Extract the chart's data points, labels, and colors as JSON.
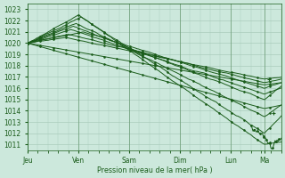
{
  "title": "",
  "xlabel": "Pression niveau de la mer( hPa )",
  "bg_color": "#cce8dc",
  "plot_bg_color": "#cce8dc",
  "grid_color": "#aaccbb",
  "line_color": "#1a5c1a",
  "ylim": [
    1010.5,
    1023.5
  ],
  "yticks": [
    1011,
    1012,
    1013,
    1014,
    1015,
    1016,
    1017,
    1018,
    1019,
    1020,
    1021,
    1022,
    1023
  ],
  "day_labels": [
    "Jeu",
    "Ven",
    "Sam",
    "Dim",
    "Lun",
    "Ma"
  ],
  "day_positions": [
    0.0,
    0.2,
    0.4,
    0.6,
    0.8,
    0.933
  ],
  "xlim": [
    0.0,
    1.0
  ],
  "figsize": [
    3.2,
    2.0
  ],
  "dpi": 100
}
